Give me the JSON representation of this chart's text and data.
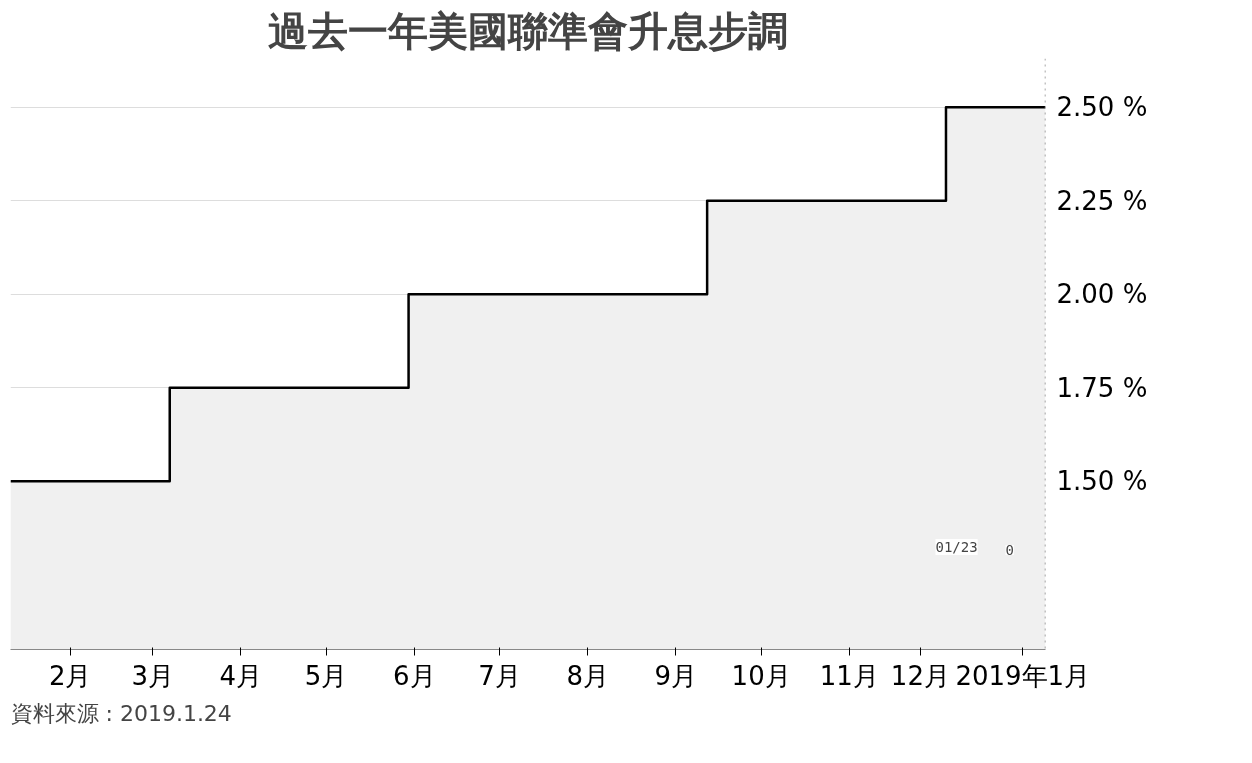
{
  "chart_data": {
    "type": "area",
    "title": "過去一年美國聯準會升息步調",
    "x": [
      "2018-01-24",
      "2018-03-21",
      "2018-03-21",
      "2018-06-13",
      "2018-06-13",
      "2018-09-26",
      "2018-09-26",
      "2018-12-19",
      "2018-12-19",
      "2019-01-23"
    ],
    "series": [
      {
        "color": "#000000",
        "values": [
          1.5,
          1.5,
          1.75,
          1.75,
          2.0,
          2.0,
          2.25,
          2.25,
          2.5,
          2.5
        ]
      }
    ],
    "xlim": [
      "2018-01-24",
      "2019-01-23"
    ],
    "xticks": [
      {
        "value": "2018-02-14",
        "label": "2月"
      },
      {
        "value": "2018-03-15",
        "label": "3月"
      },
      {
        "value": "2018-04-15",
        "label": "4月"
      },
      {
        "value": "2018-05-15",
        "label": "5月"
      },
      {
        "value": "2018-06-15",
        "label": "6月"
      },
      {
        "value": "2018-07-15",
        "label": "7月"
      },
      {
        "value": "2018-08-15",
        "label": "8月"
      },
      {
        "value": "2018-09-15",
        "label": "9月"
      },
      {
        "value": "2018-10-15",
        "label": "10月"
      },
      {
        "value": "2018-11-15",
        "label": "11月"
      },
      {
        "value": "2018-12-10",
        "label": "12月"
      },
      {
        "value": "2019-01-15",
        "label": "2019年1月"
      }
    ],
    "ylim": [
      1.05,
      2.63
    ],
    "yticks": [
      {
        "value": 1.5,
        "label": "1.50 %"
      },
      {
        "value": 1.75,
        "label": "1.75 %"
      },
      {
        "value": 2.0,
        "label": "2.00 %"
      },
      {
        "value": 2.25,
        "label": "2.25 %"
      },
      {
        "value": 2.5,
        "label": "2.50 %"
      }
    ],
    "grid": "y",
    "ref_lines": [
      {
        "axis": "x",
        "value": "2019-01-23",
        "label": null,
        "line_style": "dotted",
        "color": "#888888"
      }
    ],
    "annotations": [
      "01/23",
      "0",
      "資料來源 : 2019.1.24"
    ]
  }
}
